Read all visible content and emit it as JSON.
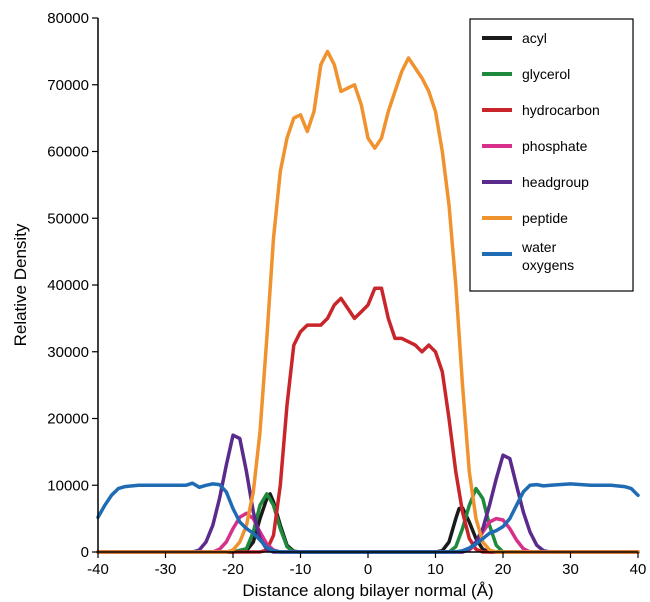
{
  "chart_data": {
    "type": "line",
    "title": "",
    "xlabel": "Distance along bilayer normal (Å)",
    "ylabel": "Relative Density",
    "xlim": [
      -40,
      40
    ],
    "ylim": [
      0,
      80000
    ],
    "xticks": [
      -40,
      -30,
      -20,
      -10,
      0,
      10,
      20,
      30,
      40
    ],
    "yticks": [
      0,
      10000,
      20000,
      30000,
      40000,
      50000,
      60000,
      70000,
      80000
    ],
    "x_tick_labels": [
      "-40",
      "-30",
      "-20",
      "-10",
      "0",
      "10",
      "20",
      "30",
      "40"
    ],
    "y_tick_labels": [
      "0",
      "10000",
      "20000",
      "30000",
      "40000",
      "50000",
      "60000",
      "70000",
      "80000"
    ],
    "grid": false,
    "legend_position": "top-right",
    "series": [
      {
        "name": "acyl",
        "color": "#1a1a1a",
        "points": [
          [
            -40,
            0
          ],
          [
            -20,
            0
          ],
          [
            -18,
            200
          ],
          [
            -17,
            1500
          ],
          [
            -16,
            5000
          ],
          [
            -15,
            8000
          ],
          [
            -14.5,
            8700
          ],
          [
            -14,
            7500
          ],
          [
            -13,
            4000
          ],
          [
            -12,
            1000
          ],
          [
            -11,
            100
          ],
          [
            -10,
            0
          ],
          [
            10,
            0
          ],
          [
            11,
            200
          ],
          [
            12,
            1500
          ],
          [
            13,
            5000
          ],
          [
            13.5,
            6500
          ],
          [
            14,
            6600
          ],
          [
            15,
            4500
          ],
          [
            16,
            2000
          ],
          [
            17,
            400
          ],
          [
            18,
            0
          ],
          [
            40,
            0
          ]
        ]
      },
      {
        "name": "glycerol",
        "color": "#1f8a3c",
        "points": [
          [
            -40,
            0
          ],
          [
            -20,
            0
          ],
          [
            -18,
            500
          ],
          [
            -17,
            3000
          ],
          [
            -16,
            7000
          ],
          [
            -15,
            8700
          ],
          [
            -14,
            7000
          ],
          [
            -13,
            3500
          ],
          [
            -12,
            800
          ],
          [
            -11,
            0
          ],
          [
            12,
            0
          ],
          [
            13,
            800
          ],
          [
            14,
            3500
          ],
          [
            15,
            7000
          ],
          [
            16,
            9500
          ],
          [
            17,
            8000
          ],
          [
            18,
            4000
          ],
          [
            19,
            1000
          ],
          [
            20,
            0
          ],
          [
            40,
            0
          ]
        ]
      },
      {
        "name": "hydrocarbon",
        "color": "#c8262a",
        "points": [
          [
            -40,
            0
          ],
          [
            -16,
            0
          ],
          [
            -15,
            300
          ],
          [
            -14,
            2500
          ],
          [
            -13,
            10000
          ],
          [
            -12,
            22000
          ],
          [
            -11,
            31000
          ],
          [
            -10,
            33000
          ],
          [
            -9,
            34000
          ],
          [
            -7,
            34000
          ],
          [
            -6,
            35000
          ],
          [
            -5,
            37000
          ],
          [
            -4,
            38000
          ],
          [
            -3,
            36500
          ],
          [
            -2,
            35000
          ],
          [
            -1,
            36000
          ],
          [
            0,
            37000
          ],
          [
            1,
            39500
          ],
          [
            2,
            39500
          ],
          [
            3,
            35000
          ],
          [
            4,
            32000
          ],
          [
            5,
            32000
          ],
          [
            7,
            31000
          ],
          [
            8,
            30000
          ],
          [
            9,
            31000
          ],
          [
            10,
            30000
          ],
          [
            11,
            27000
          ],
          [
            12,
            20000
          ],
          [
            13,
            12000
          ],
          [
            14,
            6000
          ],
          [
            15,
            2000
          ],
          [
            16,
            400
          ],
          [
            17,
            0
          ],
          [
            40,
            0
          ]
        ]
      },
      {
        "name": "phosphate",
        "color": "#d6308a",
        "points": [
          [
            -40,
            0
          ],
          [
            -23,
            0
          ],
          [
            -22,
            400
          ],
          [
            -21,
            1500
          ],
          [
            -20,
            3500
          ],
          [
            -19,
            5200
          ],
          [
            -18,
            5800
          ],
          [
            -17,
            5000
          ],
          [
            -16,
            3000
          ],
          [
            -15,
            1200
          ],
          [
            -14,
            300
          ],
          [
            -13,
            0
          ],
          [
            14,
            0
          ],
          [
            15,
            300
          ],
          [
            16,
            1200
          ],
          [
            17,
            3000
          ],
          [
            18,
            4500
          ],
          [
            19,
            5000
          ],
          [
            20,
            4800
          ],
          [
            21,
            3500
          ],
          [
            22,
            1800
          ],
          [
            23,
            500
          ],
          [
            24,
            0
          ],
          [
            40,
            0
          ]
        ]
      },
      {
        "name": "headgroup",
        "color": "#5a2a8c",
        "points": [
          [
            -40,
            0
          ],
          [
            -26,
            0
          ],
          [
            -25,
            300
          ],
          [
            -24,
            1500
          ],
          [
            -23,
            4000
          ],
          [
            -22,
            8000
          ],
          [
            -21,
            13000
          ],
          [
            -20,
            17500
          ],
          [
            -19,
            17000
          ],
          [
            -18,
            12000
          ],
          [
            -17,
            6000
          ],
          [
            -16,
            2000
          ],
          [
            -15,
            400
          ],
          [
            -14,
            0
          ],
          [
            14,
            0
          ],
          [
            15,
            500
          ],
          [
            16,
            1500
          ],
          [
            17,
            3500
          ],
          [
            18,
            7000
          ],
          [
            19,
            11000
          ],
          [
            20,
            14500
          ],
          [
            21,
            14000
          ],
          [
            22,
            10000
          ],
          [
            23,
            6000
          ],
          [
            24,
            3000
          ],
          [
            25,
            1000
          ],
          [
            26,
            200
          ],
          [
            27,
            0
          ],
          [
            40,
            0
          ]
        ]
      },
      {
        "name": "peptide",
        "color": "#f0922e",
        "points": [
          [
            -40,
            0
          ],
          [
            -21,
            0
          ],
          [
            -20,
            300
          ],
          [
            -19,
            1500
          ],
          [
            -18,
            4000
          ],
          [
            -17,
            9000
          ],
          [
            -16,
            18000
          ],
          [
            -15,
            32000
          ],
          [
            -14,
            47000
          ],
          [
            -13,
            57000
          ],
          [
            -12,
            62000
          ],
          [
            -11,
            65000
          ],
          [
            -10,
            65500
          ],
          [
            -9,
            63000
          ],
          [
            -8,
            66000
          ],
          [
            -7,
            73000
          ],
          [
            -6,
            75000
          ],
          [
            -5,
            73000
          ],
          [
            -4,
            69000
          ],
          [
            -3,
            69500
          ],
          [
            -2,
            70000
          ],
          [
            -1,
            67000
          ],
          [
            0,
            62000
          ],
          [
            1,
            60500
          ],
          [
            2,
            62000
          ],
          [
            3,
            66000
          ],
          [
            4,
            69000
          ],
          [
            5,
            72000
          ],
          [
            6,
            74000
          ],
          [
            7,
            72500
          ],
          [
            8,
            71000
          ],
          [
            9,
            69000
          ],
          [
            10,
            66000
          ],
          [
            11,
            60000
          ],
          [
            12,
            52000
          ],
          [
            13,
            40000
          ],
          [
            14,
            25000
          ],
          [
            15,
            12000
          ],
          [
            16,
            5000
          ],
          [
            17,
            1500
          ],
          [
            18,
            300
          ],
          [
            19,
            0
          ],
          [
            40,
            0
          ]
        ]
      },
      {
        "name": "water oxygens",
        "color": "#1f6cb4",
        "points": [
          [
            -40,
            5200
          ],
          [
            -39,
            7000
          ],
          [
            -38,
            8500
          ],
          [
            -37,
            9500
          ],
          [
            -36,
            9800
          ],
          [
            -34,
            10000
          ],
          [
            -30,
            10000
          ],
          [
            -27,
            10000
          ],
          [
            -26,
            10300
          ],
          [
            -25,
            9700
          ],
          [
            -24,
            10000
          ],
          [
            -23,
            10200
          ],
          [
            -22,
            10100
          ],
          [
            -21,
            9000
          ],
          [
            -20,
            6500
          ],
          [
            -19,
            4500
          ],
          [
            -18,
            3500
          ],
          [
            -17,
            2800
          ],
          [
            -16,
            1800
          ],
          [
            -15,
            700
          ],
          [
            -14,
            200
          ],
          [
            -13,
            0
          ],
          [
            13,
            0
          ],
          [
            14,
            200
          ],
          [
            15,
            600
          ],
          [
            16,
            1200
          ],
          [
            17,
            2000
          ],
          [
            18,
            2800
          ],
          [
            19,
            3200
          ],
          [
            20,
            3800
          ],
          [
            21,
            5000
          ],
          [
            22,
            7000
          ],
          [
            23,
            9000
          ],
          [
            24,
            10000
          ],
          [
            25,
            10100
          ],
          [
            26,
            9900
          ],
          [
            27,
            10000
          ],
          [
            30,
            10200
          ],
          [
            33,
            10000
          ],
          [
            36,
            10000
          ],
          [
            38,
            9800
          ],
          [
            39,
            9500
          ],
          [
            40,
            8500
          ]
        ]
      }
    ]
  }
}
